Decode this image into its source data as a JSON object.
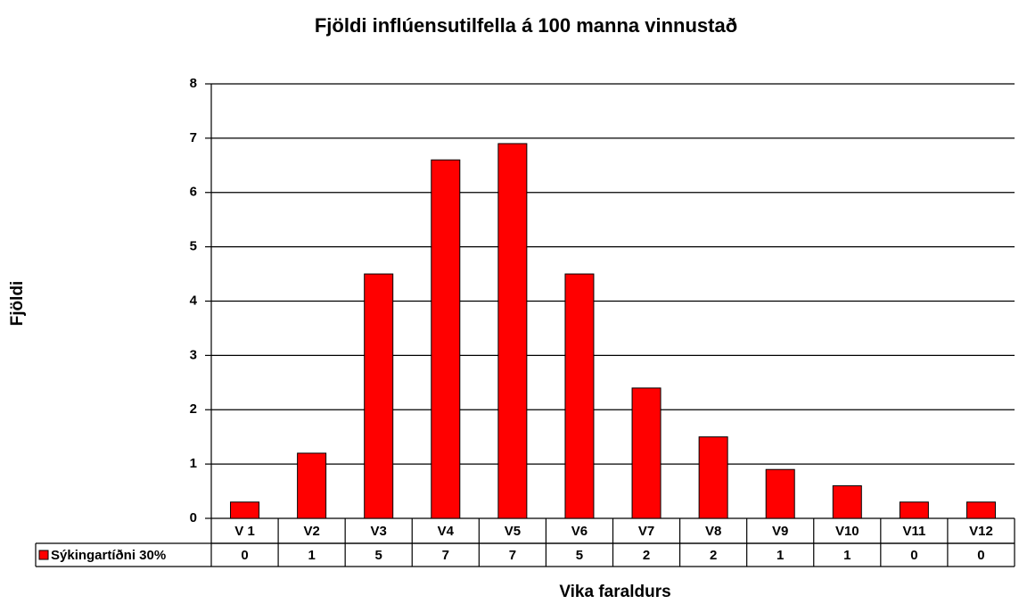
{
  "chart_data": {
    "type": "bar",
    "title": "Fjöldi inflúensutilfella á 100 manna vinnustað",
    "y_label": "Fjöldi",
    "x_label": "Vika faraldurs",
    "categories": [
      "V 1",
      "V2",
      "V3",
      "V4",
      "V5",
      "V6",
      "V7",
      "V8",
      "V9",
      "V10",
      "V11",
      "V12"
    ],
    "series": [
      {
        "name": "Sýkingartíðni 30%",
        "color": "#ff0000",
        "values": [
          0.3,
          1.2,
          4.5,
          6.6,
          6.9,
          4.5,
          2.4,
          1.5,
          0.9,
          0.6,
          0.3,
          0.3
        ],
        "value_labels": [
          "0",
          "1",
          "5",
          "7",
          "7",
          "5",
          "2",
          "2",
          "1",
          "1",
          "0",
          "0"
        ]
      }
    ],
    "ylim": [
      0,
      8
    ],
    "yticks": [
      0,
      1,
      2,
      3,
      4,
      5,
      6,
      7,
      8
    ],
    "grid": true
  }
}
